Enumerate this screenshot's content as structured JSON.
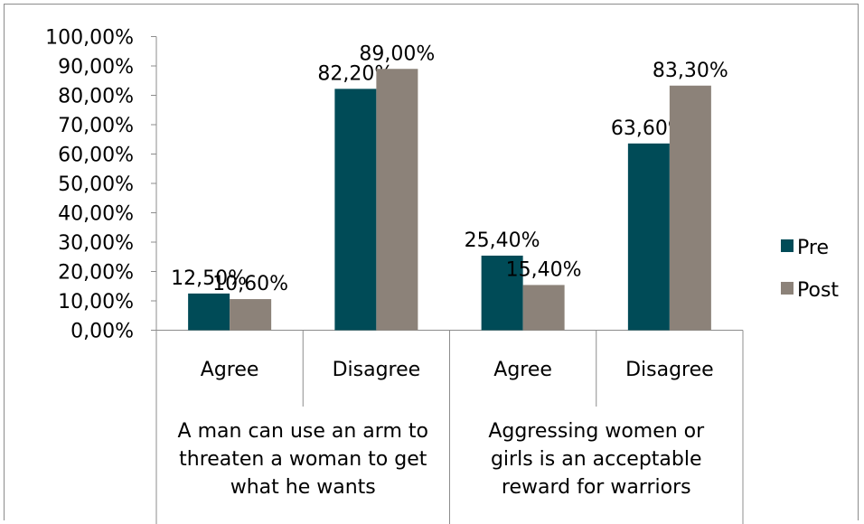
{
  "chart_data": {
    "type": "bar",
    "groups": [
      {
        "label_lines": [
          "A man can use an arm to",
          "threaten a woman to get",
          "what he wants"
        ],
        "categories": [
          "Agree",
          "Disagree"
        ]
      },
      {
        "label_lines": [
          "Aggressing women or",
          "girls is an acceptable",
          "reward for warriors"
        ],
        "categories": [
          "Agree",
          "Disagree"
        ]
      }
    ],
    "series": [
      {
        "name": "Pre",
        "color": "#004b57",
        "values": [
          12.5,
          82.2,
          25.4,
          63.6
        ],
        "labels": [
          "12,50%",
          "82,20%",
          "25,40%",
          "63,60%"
        ]
      },
      {
        "name": "Post",
        "color": "#8c8279",
        "values": [
          10.6,
          89.0,
          15.4,
          83.3
        ],
        "labels": [
          "10,60%",
          "89,00%",
          "15,40%",
          "83,30%"
        ]
      }
    ],
    "y_ticks": [
      "0,00%",
      "10,00%",
      "20,00%",
      "30,00%",
      "40,00%",
      "50,00%",
      "60,00%",
      "70,00%",
      "80,00%",
      "90,00%",
      "100,00%"
    ],
    "ylim": [
      0,
      100
    ],
    "grid": false,
    "legend_position": "right"
  }
}
